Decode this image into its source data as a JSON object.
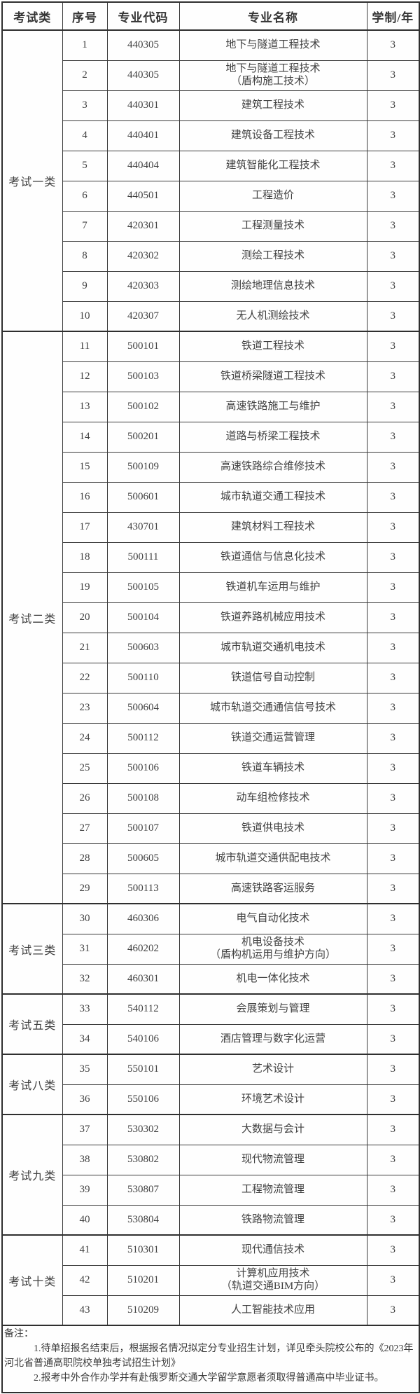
{
  "table": {
    "columns": [
      {
        "key": "category",
        "label": "考试类"
      },
      {
        "key": "seq",
        "label": "序号"
      },
      {
        "key": "code",
        "label": "专业代码"
      },
      {
        "key": "name",
        "label": "专业名称"
      },
      {
        "key": "duration",
        "label": "学制/年"
      }
    ],
    "sections": [
      {
        "category": "考试一类",
        "rows": [
          {
            "seq": "1",
            "code": "440305",
            "name": "地下与隧道工程技术",
            "duration": "3"
          },
          {
            "seq": "2",
            "code": "440305",
            "name": "地下与隧道工程技术\n（盾构施工技术）",
            "duration": "3"
          },
          {
            "seq": "3",
            "code": "440301",
            "name": "建筑工程技术",
            "duration": "3"
          },
          {
            "seq": "4",
            "code": "440401",
            "name": "建筑设备工程技术",
            "duration": "3"
          },
          {
            "seq": "5",
            "code": "440404",
            "name": "建筑智能化工程技术",
            "duration": "3"
          },
          {
            "seq": "6",
            "code": "440501",
            "name": "工程造价",
            "duration": "3"
          },
          {
            "seq": "7",
            "code": "420301",
            "name": "工程测量技术",
            "duration": "3"
          },
          {
            "seq": "8",
            "code": "420302",
            "name": "测绘工程技术",
            "duration": "3"
          },
          {
            "seq": "9",
            "code": "420303",
            "name": "测绘地理信息技术",
            "duration": "3"
          },
          {
            "seq": "10",
            "code": "420307",
            "name": "无人机测绘技术",
            "duration": "3"
          }
        ]
      },
      {
        "category": "考试二类",
        "rows": [
          {
            "seq": "11",
            "code": "500101",
            "name": "铁道工程技术",
            "duration": "3"
          },
          {
            "seq": "12",
            "code": "500103",
            "name": "铁道桥梁隧道工程技术",
            "duration": "3"
          },
          {
            "seq": "13",
            "code": "500102",
            "name": "高速铁路施工与维护",
            "duration": "3"
          },
          {
            "seq": "14",
            "code": "500201",
            "name": "道路与桥梁工程技术",
            "duration": "3"
          },
          {
            "seq": "15",
            "code": "500109",
            "name": "高速铁路综合维修技术",
            "duration": "3"
          },
          {
            "seq": "16",
            "code": "500601",
            "name": "城市轨道交通工程技术",
            "duration": "3"
          },
          {
            "seq": "17",
            "code": "430701",
            "name": "建筑材料工程技术",
            "duration": "3"
          },
          {
            "seq": "18",
            "code": "500111",
            "name": "铁道通信与信息化技术",
            "duration": "3"
          },
          {
            "seq": "19",
            "code": "500105",
            "name": "铁道机车运用与维护",
            "duration": "3"
          },
          {
            "seq": "20",
            "code": "500104",
            "name": "铁道养路机械应用技术",
            "duration": "3"
          },
          {
            "seq": "21",
            "code": "500603",
            "name": "城市轨道交通机电技术",
            "duration": "3"
          },
          {
            "seq": "22",
            "code": "500110",
            "name": "铁道信号自动控制",
            "duration": "3"
          },
          {
            "seq": "23",
            "code": "500604",
            "name": "城市轨道交通通信信号技术",
            "duration": "3"
          },
          {
            "seq": "24",
            "code": "500112",
            "name": "铁道交通运营管理",
            "duration": "3"
          },
          {
            "seq": "25",
            "code": "500106",
            "name": "铁道车辆技术",
            "duration": "3"
          },
          {
            "seq": "26",
            "code": "500108",
            "name": "动车组检修技术",
            "duration": "3"
          },
          {
            "seq": "27",
            "code": "500107",
            "name": "铁道供电技术",
            "duration": "3"
          },
          {
            "seq": "28",
            "code": "500605",
            "name": "城市轨道交通供配电技术",
            "duration": "3"
          },
          {
            "seq": "29",
            "code": "500113",
            "name": "高速铁路客运服务",
            "duration": "3"
          }
        ]
      },
      {
        "category": "考试三类",
        "rows": [
          {
            "seq": "30",
            "code": "460306",
            "name": "电气自动化技术",
            "duration": "3"
          },
          {
            "seq": "31",
            "code": "460202",
            "name": "机电设备技术\n（盾构机运用与维护方向）",
            "duration": "3"
          },
          {
            "seq": "32",
            "code": "460301",
            "name": "机电一体化技术",
            "duration": "3"
          }
        ]
      },
      {
        "category": "考试五类",
        "rows": [
          {
            "seq": "33",
            "code": "540112",
            "name": "会展策划与管理",
            "duration": "3"
          },
          {
            "seq": "34",
            "code": "540106",
            "name": "酒店管理与数字化运营",
            "duration": "3"
          }
        ]
      },
      {
        "category": "考试八类",
        "rows": [
          {
            "seq": "35",
            "code": "550101",
            "name": "艺术设计",
            "duration": "3"
          },
          {
            "seq": "36",
            "code": "550106",
            "name": "环境艺术设计",
            "duration": "3"
          }
        ]
      },
      {
        "category": "考试九类",
        "rows": [
          {
            "seq": "37",
            "code": "530302",
            "name": "大数据与会计",
            "duration": "3"
          },
          {
            "seq": "38",
            "code": "530802",
            "name": "现代物流管理",
            "duration": "3"
          },
          {
            "seq": "39",
            "code": "530807",
            "name": "工程物流管理",
            "duration": "3"
          },
          {
            "seq": "40",
            "code": "530804",
            "name": "铁路物流管理",
            "duration": "3"
          }
        ]
      },
      {
        "category": "考试十类",
        "rows": [
          {
            "seq": "41",
            "code": "510301",
            "name": "现代通信技术",
            "duration": "3"
          },
          {
            "seq": "42",
            "code": "510201",
            "name": "计算机应用技术\n（轨道交通BIM方向）",
            "duration": "3"
          },
          {
            "seq": "43",
            "code": "510209",
            "name": "人工智能技术应用",
            "duration": "3"
          }
        ]
      }
    ]
  },
  "notes": {
    "title": "备注：",
    "items": [
      "1.待单招报名结束后，根据报名情况拟定分专业招生计划，详见牵头院校公布的《2023年河北省普通高职院校单独考试招生计划》",
      "2.报考中外合作办学并有赴俄罗斯交通大学留学意愿者须取得普通高中毕业证书。"
    ]
  },
  "colors": {
    "border": "#2f2f2f",
    "inner_border": "#3a3a3a",
    "text": "#404040",
    "background": "#ffffff"
  }
}
